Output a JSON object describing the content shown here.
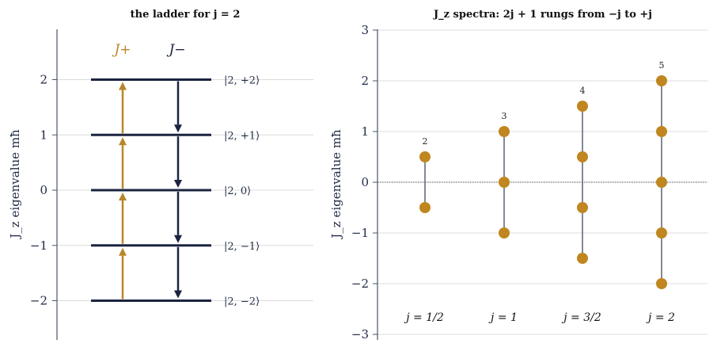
{
  "colors": {
    "raise": "#b8862a",
    "lower": "#1b2440",
    "dot": "#c0861f",
    "stem": "#5a6270",
    "grid": "#dcdcdc",
    "axis": "#4a5468"
  },
  "chart_data": [
    {
      "type": "ladder",
      "title": "the ladder for j = 2",
      "ylabel": "J_z eigenvalue mħ",
      "ylim": [
        -2.9,
        2.9
      ],
      "yticks": [
        "−2",
        "−1",
        "0",
        "1",
        "2"
      ],
      "ytick_values": [
        -2,
        -1,
        0,
        1,
        2
      ],
      "operators": {
        "raise": "J+",
        "lower": "J−"
      },
      "levels": [
        {
          "m": 2,
          "ket": "|2, +2⟩"
        },
        {
          "m": 1,
          "ket": "|2, +1⟩"
        },
        {
          "m": 0,
          "ket": "|2, 0⟩"
        },
        {
          "m": -1,
          "ket": "|2, −1⟩"
        },
        {
          "m": -2,
          "ket": "|2, −2⟩"
        }
      ],
      "raise_arrows": [
        [
          -2,
          -1
        ],
        [
          -1,
          0
        ],
        [
          0,
          1
        ],
        [
          1,
          2
        ]
      ],
      "lower_arrows": [
        [
          2,
          1
        ],
        [
          1,
          0
        ],
        [
          0,
          -1
        ],
        [
          -1,
          -2
        ]
      ],
      "grid": "horizontal"
    },
    {
      "type": "scatter",
      "title": "J_z spectra: 2j + 1 rungs from −j to +j",
      "ylabel": "J_z eigenvalue mħ",
      "ylim": [
        -3,
        3
      ],
      "yticks": [
        "−3",
        "−2",
        "−1",
        "0",
        "1",
        "2",
        "3"
      ],
      "ytick_values": [
        -3,
        -2,
        -1,
        0,
        1,
        2,
        3
      ],
      "grid": "horizontal",
      "zero_line": "dotted",
      "series": [
        {
          "label": "j = 1/2",
          "count": "2",
          "values": [
            0.5,
            -0.5
          ]
        },
        {
          "label": "j = 1",
          "count": "3",
          "values": [
            1,
            0,
            -1
          ]
        },
        {
          "label": "j = 3/2",
          "count": "4",
          "values": [
            1.5,
            0.5,
            -0.5,
            -1.5
          ]
        },
        {
          "label": "j = 2",
          "count": "5",
          "values": [
            2,
            1,
            0,
            -1,
            -2
          ]
        }
      ]
    }
  ]
}
